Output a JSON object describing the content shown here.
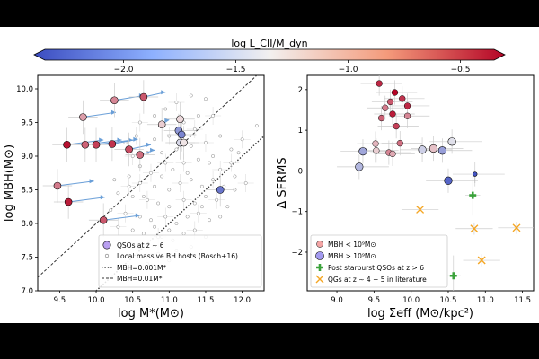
{
  "colorbar": {
    "label": "log L_CII/M_dyn",
    "ticks": [
      "−2.0",
      "−1.5",
      "−1.0",
      "−0.5"
    ],
    "tick_values": [
      -2.0,
      -1.5,
      -1.0,
      -0.5
    ],
    "range": [
      -2.35,
      -0.35
    ],
    "colors": {
      "low": "#3b4cc0",
      "mid": "#f2f0ef",
      "high": "#b40426"
    }
  },
  "chart_data": [
    {
      "type": "scatter",
      "name": "left-panel",
      "xlabel": "log M*(M⊙)",
      "ylabel": "log MBH(M⊙)",
      "xlim": [
        9.2,
        12.3
      ],
      "ylim": [
        7.0,
        10.2
      ],
      "xticks": [
        "9.5",
        "10.0",
        "10.5",
        "11.0",
        "11.5",
        "12.0"
      ],
      "xtick_values": [
        9.5,
        10.0,
        10.5,
        11.0,
        11.5,
        12.0
      ],
      "yticks": [
        "7.0",
        "7.5",
        "8.0",
        "8.5",
        "9.0",
        "9.5",
        "10.0"
      ],
      "ytick_values": [
        7.0,
        7.5,
        8.0,
        8.5,
        9.0,
        9.5,
        10.0
      ],
      "lines": [
        {
          "name": "MBH=0.001M*",
          "offset": -3,
          "style": "dotted"
        },
        {
          "name": "MBH=0.01M*",
          "offset": -2,
          "style": "dashed"
        }
      ],
      "qsos": [
        {
          "x": 9.82,
          "y": 9.58,
          "c": -1.0,
          "dx": 0.45
        },
        {
          "x": 10.25,
          "y": 9.83,
          "c": -0.9,
          "dx": 0.4
        },
        {
          "x": 10.65,
          "y": 9.88,
          "c": -0.7,
          "dx": 0.3
        },
        {
          "x": 9.6,
          "y": 9.17,
          "c": -0.4,
          "dx": 0.5
        },
        {
          "x": 9.85,
          "y": 9.17,
          "c": -0.75,
          "dx": 0.5
        },
        {
          "x": 10.0,
          "y": 9.17,
          "c": -0.6,
          "dx": 0.5
        },
        {
          "x": 10.22,
          "y": 9.18,
          "c": -0.55,
          "dx": 0.35
        },
        {
          "x": 10.45,
          "y": 9.1,
          "c": -0.65,
          "dx": 0.3
        },
        {
          "x": 10.6,
          "y": 9.02,
          "c": -0.8,
          "dx": 0.2
        },
        {
          "x": 10.9,
          "y": 9.47,
          "c": -1.2,
          "dx": 0.1
        },
        {
          "x": 11.15,
          "y": 9.55,
          "c": -1.25,
          "dx": 0.0
        },
        {
          "x": 11.13,
          "y": 9.38,
          "c": -1.9,
          "dx": 0.0
        },
        {
          "x": 11.17,
          "y": 9.32,
          "c": -2.0,
          "dx": 0.0
        },
        {
          "x": 11.15,
          "y": 9.2,
          "c": -1.5,
          "dx": 0.0
        },
        {
          "x": 11.2,
          "y": 9.2,
          "c": -1.3,
          "dx": 0.0
        },
        {
          "x": 9.47,
          "y": 8.56,
          "c": -0.85,
          "dx": 0.5
        },
        {
          "x": 9.62,
          "y": 8.32,
          "c": -0.45,
          "dx": 0.5
        },
        {
          "x": 10.1,
          "y": 8.05,
          "c": -0.7,
          "dx": 0.5
        },
        {
          "x": 11.7,
          "y": 8.5,
          "c": -2.1,
          "dx": 0.0
        }
      ],
      "local_hosts": [
        [
          10.6,
          9.5
        ],
        [
          10.8,
          9.6
        ],
        [
          10.95,
          9.7
        ],
        [
          11.1,
          9.8
        ],
        [
          11.3,
          9.9
        ],
        [
          11.5,
          9.85
        ],
        [
          11.6,
          9.6
        ],
        [
          11.4,
          9.6
        ],
        [
          11.2,
          9.5
        ],
        [
          11.0,
          9.3
        ],
        [
          10.8,
          9.25
        ],
        [
          10.7,
          9.05
        ],
        [
          10.5,
          9.0
        ],
        [
          10.9,
          9.05
        ],
        [
          11.3,
          9.15
        ],
        [
          11.5,
          9.2
        ],
        [
          11.7,
          9.3
        ],
        [
          11.85,
          9.1
        ],
        [
          12.0,
          9.25
        ],
        [
          12.2,
          9.45
        ],
        [
          10.6,
          8.85
        ],
        [
          10.75,
          8.75
        ],
        [
          10.9,
          8.7
        ],
        [
          11.05,
          8.8
        ],
        [
          11.2,
          8.9
        ],
        [
          11.4,
          8.95
        ],
        [
          11.55,
          8.9
        ],
        [
          11.7,
          8.8
        ],
        [
          11.9,
          8.7
        ],
        [
          10.45,
          8.7
        ],
        [
          10.6,
          8.6
        ],
        [
          10.8,
          8.55
        ],
        [
          11.0,
          8.5
        ],
        [
          11.15,
          8.6
        ],
        [
          11.3,
          8.65
        ],
        [
          11.45,
          8.55
        ],
        [
          11.6,
          8.65
        ],
        [
          11.75,
          8.55
        ],
        [
          11.9,
          8.5
        ],
        [
          12.05,
          8.6
        ],
        [
          10.3,
          8.45
        ],
        [
          10.5,
          8.4
        ],
        [
          10.7,
          8.35
        ],
        [
          10.85,
          8.3
        ],
        [
          11.0,
          8.25
        ],
        [
          11.2,
          8.35
        ],
        [
          11.35,
          8.3
        ],
        [
          11.5,
          8.4
        ],
        [
          11.65,
          8.35
        ],
        [
          11.8,
          8.25
        ],
        [
          10.2,
          8.2
        ],
        [
          10.4,
          8.15
        ],
        [
          10.6,
          8.1
        ],
        [
          10.75,
          8.05
        ],
        [
          10.95,
          8.1
        ],
        [
          11.1,
          8.0
        ],
        [
          11.25,
          8.1
        ],
        [
          11.4,
          8.15
        ],
        [
          11.55,
          8.05
        ],
        [
          11.7,
          8.1
        ],
        [
          10.3,
          7.95
        ],
        [
          10.5,
          7.9
        ],
        [
          10.65,
          7.85
        ],
        [
          10.85,
          7.8
        ],
        [
          11.05,
          7.75
        ],
        [
          11.2,
          7.85
        ],
        [
          11.35,
          7.9
        ],
        [
          11.5,
          7.8
        ],
        [
          10.6,
          7.65
        ],
        [
          10.85,
          7.55
        ],
        [
          11.1,
          7.6
        ],
        [
          11.3,
          7.65
        ],
        [
          10.7,
          7.4
        ],
        [
          11.0,
          7.45
        ],
        [
          10.9,
          7.8
        ],
        [
          10.45,
          8.55
        ],
        [
          11.95,
          9.05
        ],
        [
          11.25,
          8.75
        ],
        [
          10.55,
          9.3
        ],
        [
          11.6,
          9.0
        ],
        [
          10.25,
          8.65
        ],
        [
          10.95,
          8.9
        ],
        [
          11.45,
          8.25
        ],
        [
          10.8,
          7.95
        ],
        [
          11.85,
          8.9
        ],
        [
          10.4,
          9.2
        ],
        [
          11.1,
          9.1
        ],
        [
          11.35,
          9.4
        ],
        [
          10.65,
          8.4
        ],
        [
          11.0,
          7.9
        ]
      ],
      "legend": [
        "QSOs at z ∼ 6",
        "Local massive BH hosts (Bosch+16)",
        "MBH=0.001M*",
        "MBH=0.01M*"
      ]
    },
    {
      "type": "scatter",
      "name": "right-panel",
      "xlabel": "log Σeff (M⊙/kpc²)",
      "ylabel": "Δ SFRMS",
      "xlim": [
        8.6,
        11.65
      ],
      "ylim": [
        -2.95,
        2.35
      ],
      "xticks": [
        "9.0",
        "9.5",
        "10.0",
        "10.5",
        "11.0",
        "11.5"
      ],
      "xtick_values": [
        9.0,
        9.5,
        10.0,
        10.5,
        11.0,
        11.5
      ],
      "yticks": [
        "−2",
        "−1",
        "0",
        "1",
        "2"
      ],
      "ytick_values": [
        -2,
        -1,
        0,
        1,
        2
      ],
      "low_mass": [
        {
          "x": 9.57,
          "y": 2.15,
          "c": -0.5
        },
        {
          "x": 9.78,
          "y": 1.93,
          "c": -0.35
        },
        {
          "x": 9.72,
          "y": 1.7,
          "c": -0.7
        },
        {
          "x": 9.88,
          "y": 1.78,
          "c": -0.55
        },
        {
          "x": 9.65,
          "y": 1.55,
          "c": -0.85
        },
        {
          "x": 9.95,
          "y": 1.6,
          "c": -0.5
        },
        {
          "x": 9.75,
          "y": 1.4,
          "c": -0.45
        },
        {
          "x": 9.6,
          "y": 1.3,
          "c": -0.75
        },
        {
          "x": 9.95,
          "y": 1.35,
          "c": -0.9
        },
        {
          "x": 9.8,
          "y": 1.1,
          "c": -0.6
        },
        {
          "x": 9.52,
          "y": 0.67,
          "c": -1.1
        },
        {
          "x": 9.85,
          "y": 0.68,
          "c": -0.8
        },
        {
          "x": 9.53,
          "y": 0.5,
          "c": -1.2
        },
        {
          "x": 9.7,
          "y": 0.45,
          "c": -0.9
        },
        {
          "x": 9.75,
          "y": 0.42,
          "c": -1.05
        }
      ],
      "high_mass": [
        {
          "x": 10.55,
          "y": 0.72,
          "c": -1.45
        },
        {
          "x": 10.3,
          "y": 0.55,
          "c": -1.15
        },
        {
          "x": 10.15,
          "y": 0.52,
          "c": -1.55
        },
        {
          "x": 9.35,
          "y": 0.48,
          "c": -1.8
        },
        {
          "x": 10.42,
          "y": 0.5,
          "c": -1.85
        },
        {
          "x": 9.3,
          "y": 0.1,
          "c": -1.7
        },
        {
          "x": 10.5,
          "y": -0.24,
          "c": -2.2
        },
        {
          "x": 10.86,
          "y": -0.08,
          "c": -2.3
        }
      ],
      "post_starburst": [
        {
          "x": 10.83,
          "y": -0.6
        },
        {
          "x": 10.57,
          "y": -2.58
        }
      ],
      "qgs": [
        {
          "x": 10.12,
          "y": -0.95
        },
        {
          "x": 10.85,
          "y": -1.42
        },
        {
          "x": 10.95,
          "y": -2.2
        },
        {
          "x": 11.42,
          "y": -1.4
        }
      ],
      "legend": [
        "MBH < 10⁹M⊙",
        "MBH > 10⁹M⊙",
        "Post starburst QSOs at z > 6",
        "QGs at z ∼ 4 − 5 in literature"
      ]
    }
  ]
}
